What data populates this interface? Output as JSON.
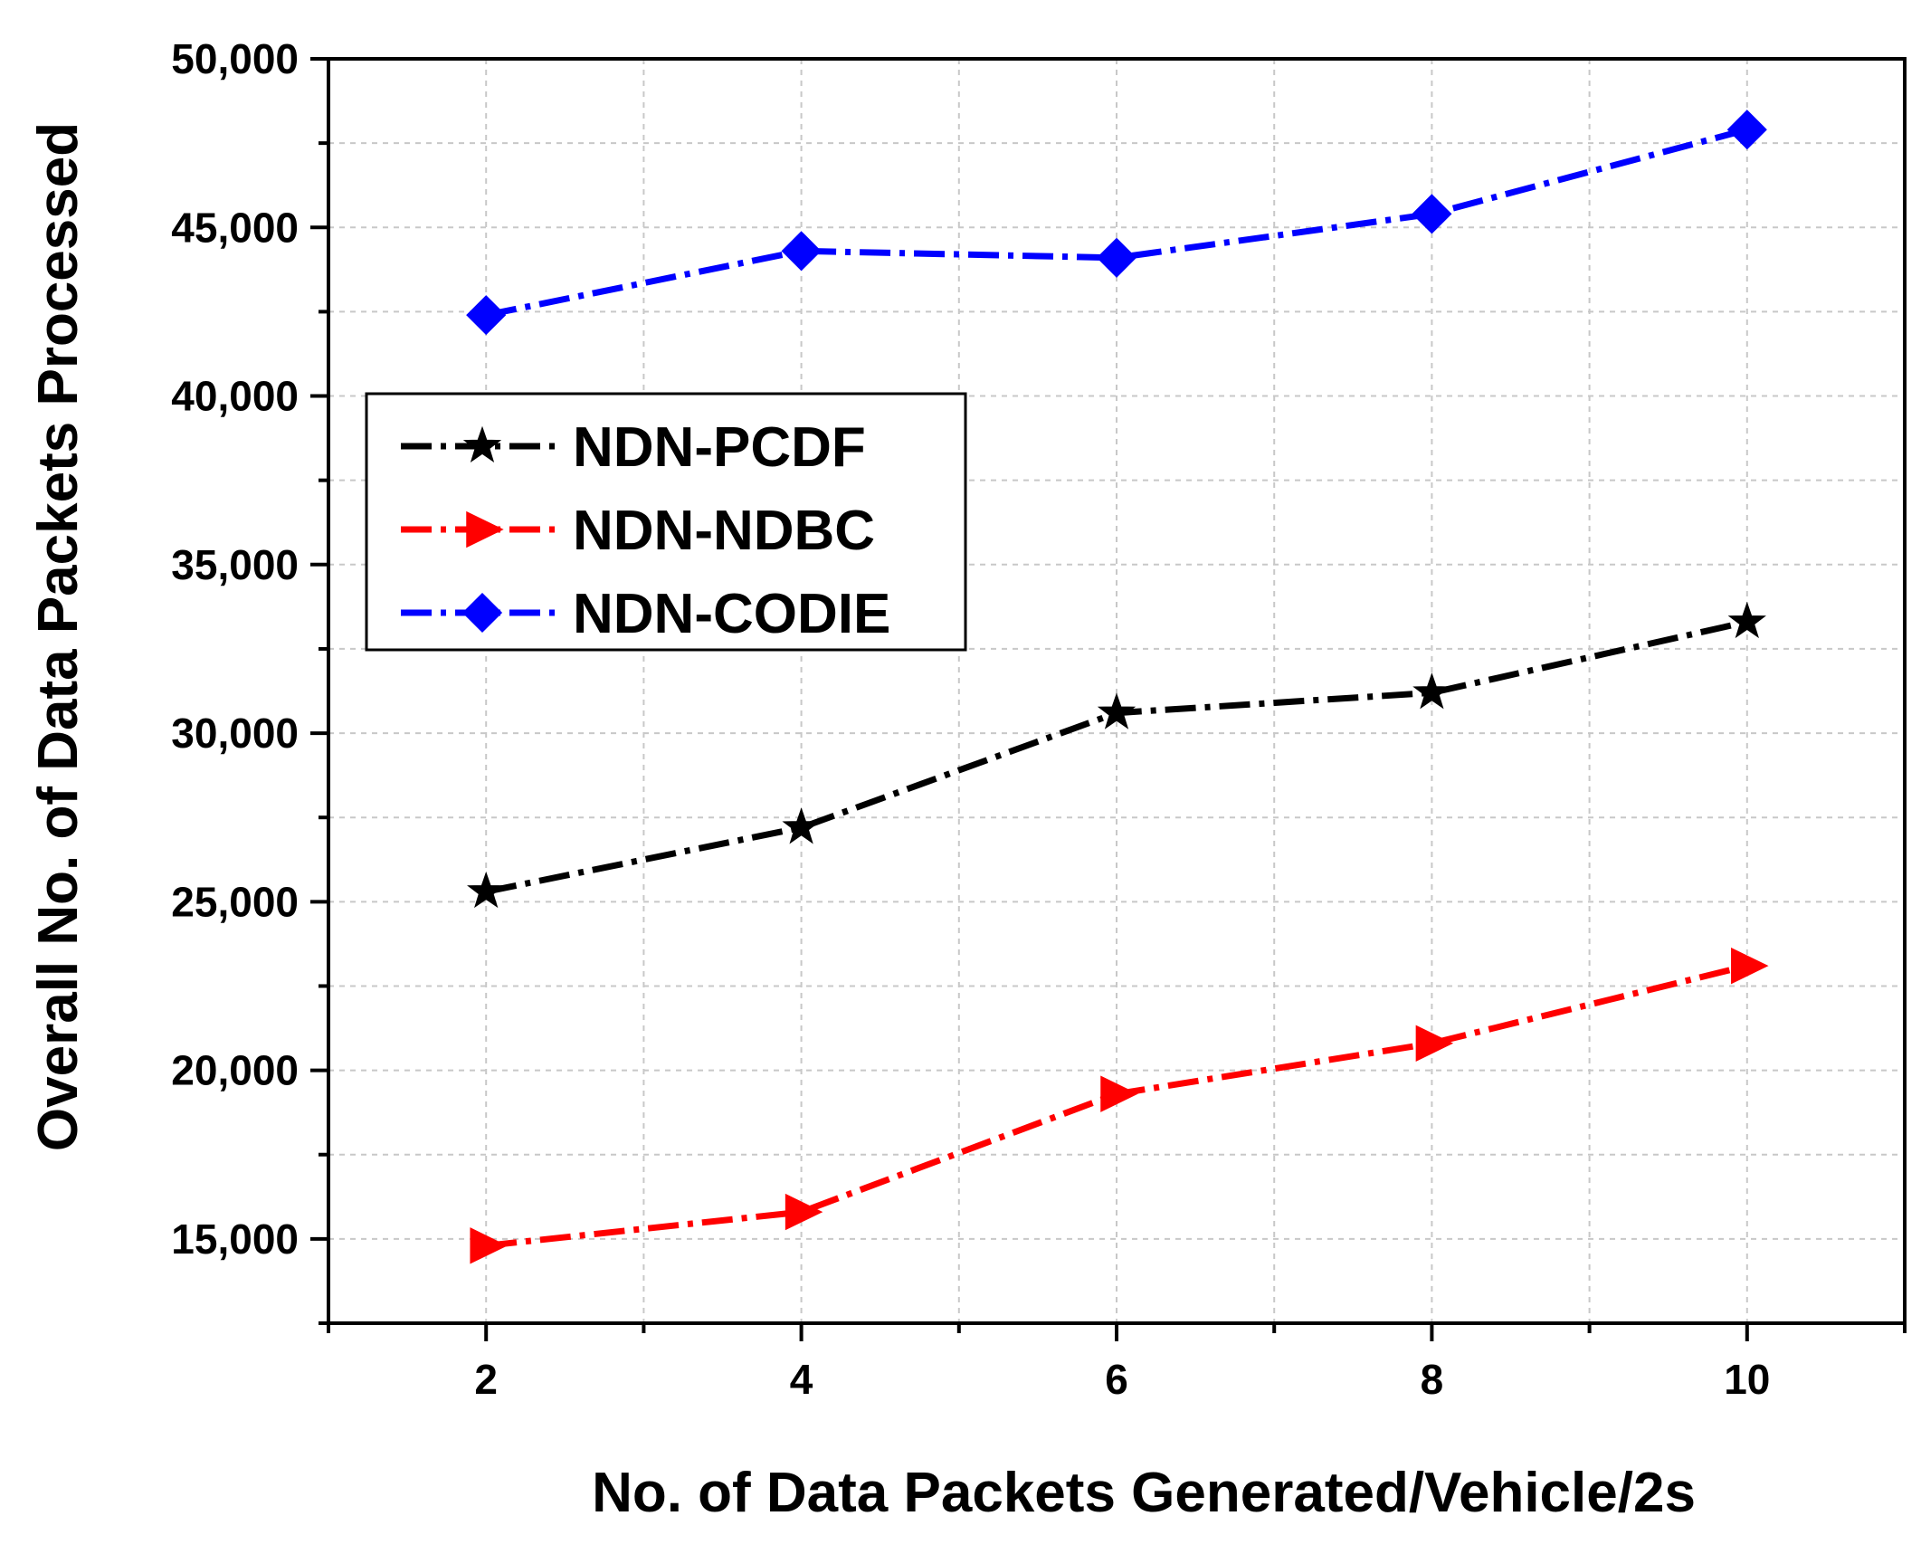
{
  "chart_data": {
    "type": "line",
    "title": "",
    "xlabel": "No. of Data Packets Generated/Vehicle/2s",
    "ylabel": "Overall No. of Data Packets Processed",
    "xlim": [
      1,
      11
    ],
    "ylim": [
      12500,
      50000
    ],
    "x_ticks": [
      {
        "value": 2,
        "label": "2"
      },
      {
        "value": 4,
        "label": "4"
      },
      {
        "value": 6,
        "label": "6"
      },
      {
        "value": 8,
        "label": "8"
      },
      {
        "value": 10,
        "label": "10"
      }
    ],
    "y_ticks": [
      {
        "value": 15000,
        "label": "15,000"
      },
      {
        "value": 20000,
        "label": "20,000"
      },
      {
        "value": 25000,
        "label": "25,000"
      },
      {
        "value": 30000,
        "label": "30,000"
      },
      {
        "value": 35000,
        "label": "35,000"
      },
      {
        "value": 40000,
        "label": "40,000"
      },
      {
        "value": 45000,
        "label": "45,000"
      },
      {
        "value": 50000,
        "label": "50,000"
      }
    ],
    "grid": true,
    "legend_position": "upper-left",
    "x": [
      2,
      4,
      6,
      8,
      10
    ],
    "series": [
      {
        "name": "NDN-PCDF",
        "values": [
          25300,
          27200,
          30600,
          31200,
          33300
        ],
        "color": "#000000",
        "marker": "star"
      },
      {
        "name": "NDN-NDBC",
        "values": [
          14800,
          15800,
          19300,
          20800,
          23100
        ],
        "color": "#ff0000",
        "marker": "triangle-right"
      },
      {
        "name": "NDN-CODIE",
        "values": [
          42400,
          44300,
          44100,
          45400,
          47900
        ],
        "color": "#0000ff",
        "marker": "diamond"
      }
    ]
  }
}
